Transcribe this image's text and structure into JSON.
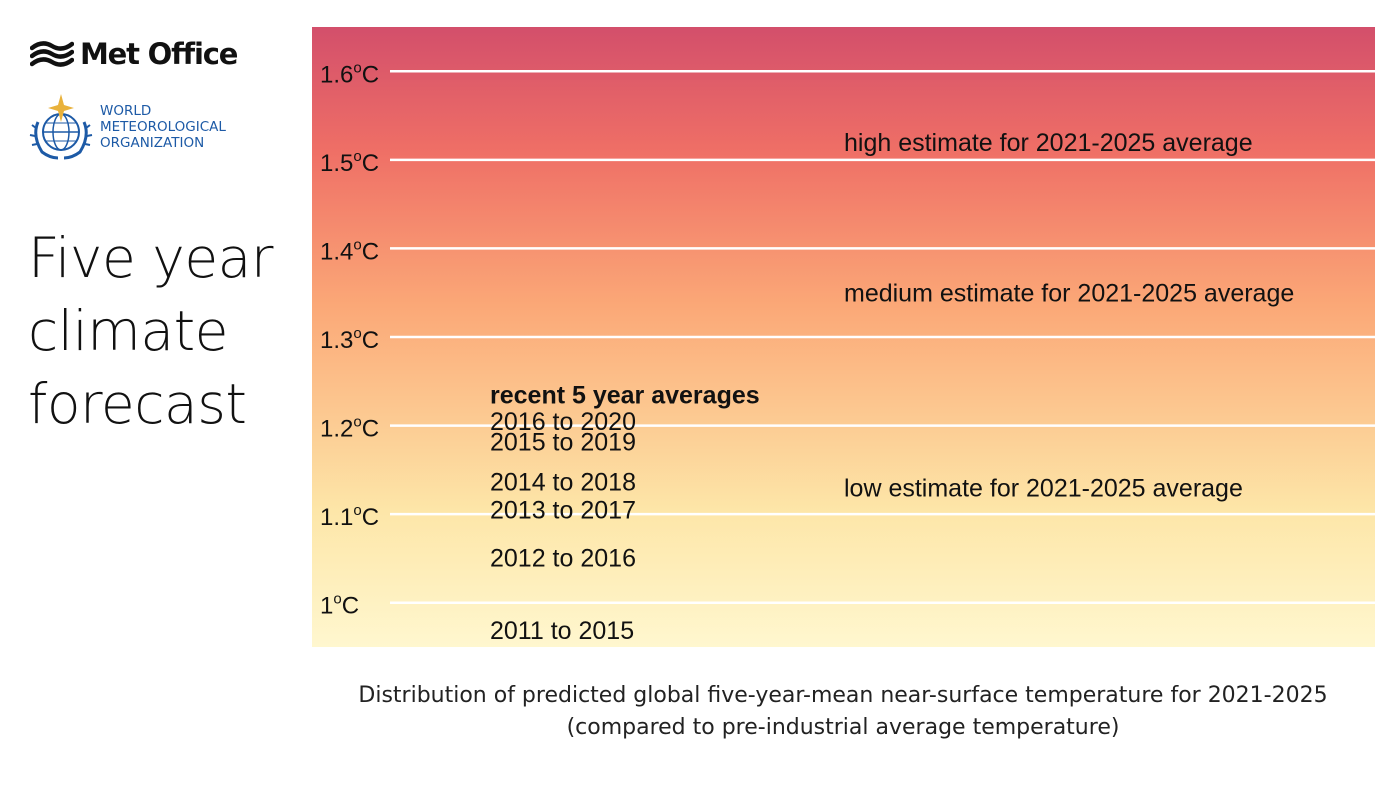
{
  "brand": {
    "met_office": "Met Office",
    "wmo_lines": [
      "WORLD",
      "METEOROLOGICAL",
      "ORGANIZATION"
    ],
    "wmo_color": "#1d5aa6"
  },
  "headline_lines": [
    "Five year",
    "climate",
    "forecast"
  ],
  "caption_lines": [
    "Distribution of predicted global five-year-mean near-surface temperature for 2021-2025",
    "(compared to pre-industrial average temperature)"
  ],
  "chart_data": {
    "type": "table",
    "y_unit": "°C",
    "ylim": [
      0.95,
      1.65
    ],
    "y_ticks": [
      {
        "value": 1.6,
        "number": "1.6",
        "sup": "o",
        "unit": "C"
      },
      {
        "value": 1.5,
        "number": "1.5",
        "sup": "o",
        "unit": "C"
      },
      {
        "value": 1.4,
        "number": "1.4",
        "sup": "o",
        "unit": "C"
      },
      {
        "value": 1.3,
        "number": "1.3",
        "sup": "o",
        "unit": "C"
      },
      {
        "value": 1.2,
        "number": "1.2",
        "sup": "o",
        "unit": "C"
      },
      {
        "value": 1.1,
        "number": "1.1",
        "sup": "o",
        "unit": "C"
      },
      {
        "value": 1.0,
        "number": "1",
        "sup": "o",
        "unit": "C"
      }
    ],
    "grid": true,
    "gradient_colors": {
      "top": "#d34f6b",
      "upper": "#ef6f66",
      "middle": "#fba877",
      "lower": "#fde6a8",
      "bottom": "#fff7cf"
    },
    "estimates": [
      {
        "label": "high estimate for 2021-2025 average",
        "value": 1.52
      },
      {
        "label": "medium estimate for 2021-2025 average",
        "value": 1.35
      },
      {
        "label": "low estimate for 2021-2025 average",
        "value": 1.13
      }
    ],
    "recent_heading": "recent 5 year averages",
    "recent_heading_value": 1.235,
    "recent_averages": [
      {
        "label": "2016 to 2020",
        "value": 1.205
      },
      {
        "label": "2015 to 2019",
        "value": 1.182
      },
      {
        "label": "2014 to 2018",
        "value": 1.137
      },
      {
        "label": "2013 to 2017",
        "value": 1.105
      },
      {
        "label": "2012 to 2016",
        "value": 1.051
      },
      {
        "label": "2011 to 2015",
        "value": 0.969
      }
    ]
  }
}
